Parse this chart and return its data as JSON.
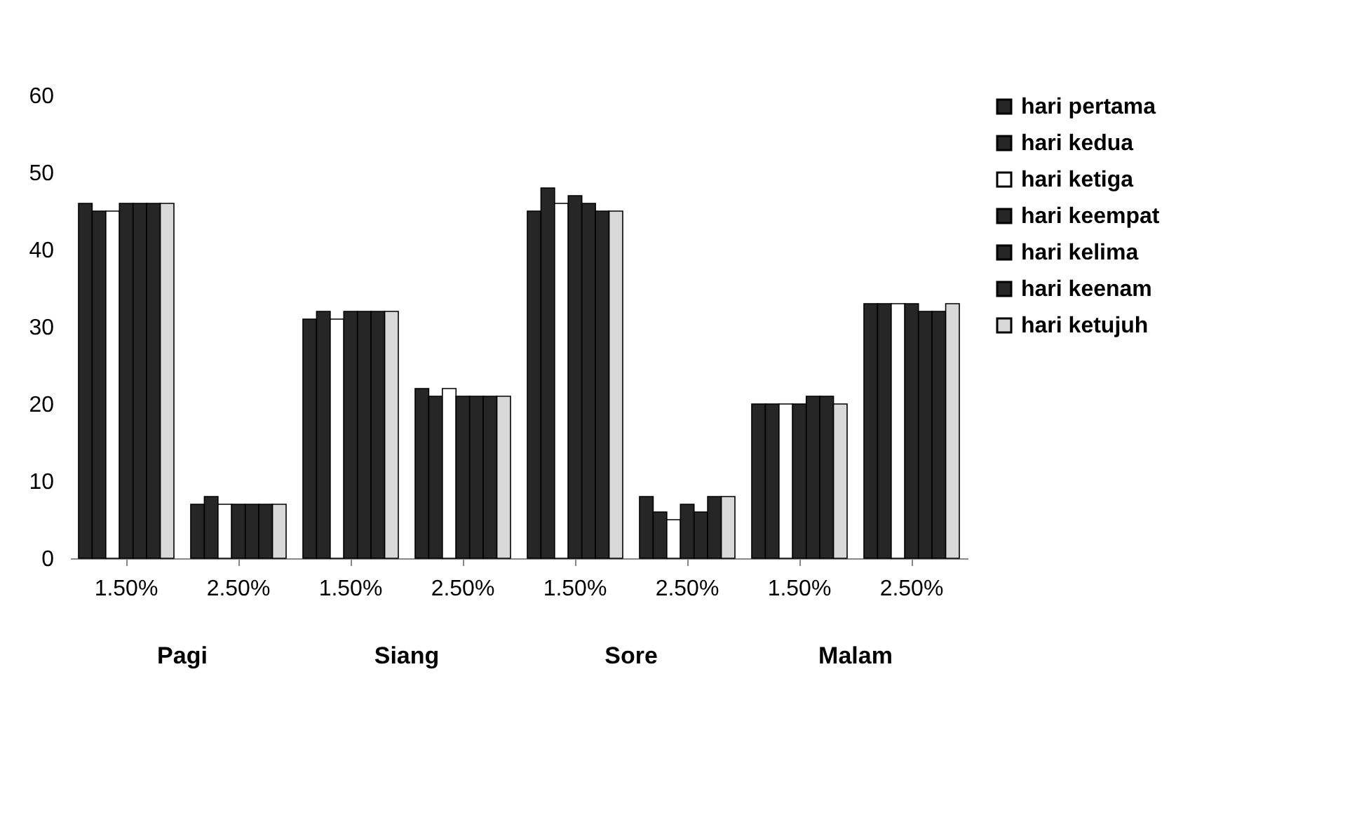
{
  "chart_data": {
    "type": "bar",
    "categories": [
      "1.50%",
      "2.50%",
      "1.50%",
      "2.50%",
      "1.50%",
      "2.50%",
      "1.50%",
      "2.50%"
    ],
    "series": [
      {
        "name": "hari pertama",
        "color": "#262626",
        "values": [
          46,
          7,
          31,
          22,
          45,
          8,
          20,
          33
        ]
      },
      {
        "name": "hari kedua",
        "color": "#262626",
        "values": [
          45,
          8,
          32,
          21,
          48,
          6,
          20,
          33
        ]
      },
      {
        "name": "hari ketiga",
        "color": "#ffffff",
        "values": [
          45,
          7,
          31,
          22,
          46,
          5,
          20,
          33
        ]
      },
      {
        "name": "hari keempat",
        "color": "#262626",
        "values": [
          46,
          7,
          32,
          21,
          47,
          7,
          20,
          33
        ]
      },
      {
        "name": "hari kelima",
        "color": "#262626",
        "values": [
          46,
          7,
          32,
          21,
          46,
          6,
          21,
          32
        ]
      },
      {
        "name": "hari keenam",
        "color": "#262626",
        "values": [
          46,
          7,
          32,
          21,
          45,
          8,
          21,
          32
        ]
      },
      {
        "name": "hari ketujuh",
        "color": "#d9d9d9",
        "values": [
          46,
          7,
          32,
          21,
          45,
          8,
          20,
          33
        ]
      }
    ],
    "annotations": [
      "Pagi",
      "Siang",
      "Sore",
      "Malam"
    ],
    "ylim": [
      0,
      60
    ],
    "yticks": [
      0,
      10,
      20,
      30,
      40,
      50,
      60
    ],
    "grid": false,
    "legend": "right"
  }
}
